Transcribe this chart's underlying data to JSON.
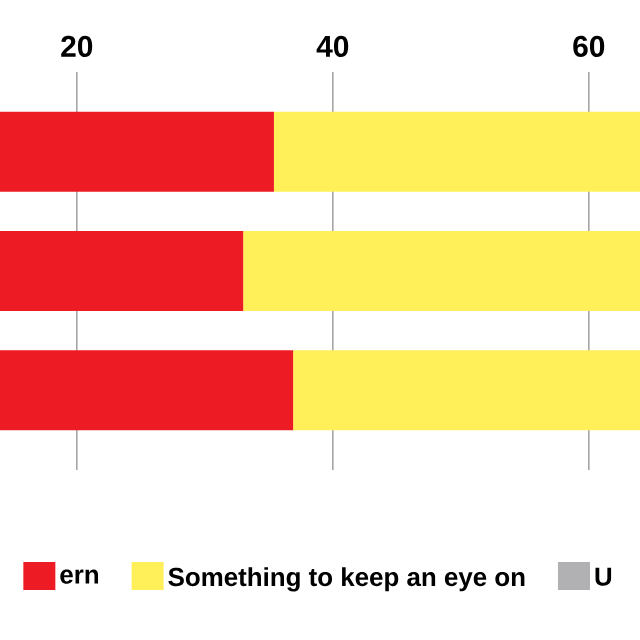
{
  "chart_data": {
    "type": "bar",
    "orientation": "horizontal",
    "stacked": true,
    "categories": [
      null,
      null,
      null
    ],
    "series": [
      {
        "name": "ern",
        "color": "#ed1c24",
        "values": [
          35.4,
          33.0,
          36.9
        ]
      },
      {
        "name": "Something to keep an eye on",
        "color": "#fff05a",
        "values": [
          28.6,
          31.0,
          27.1
        ]
      },
      {
        "name": "U",
        "color": "#b1b1b3",
        "values": [
          null,
          null,
          null
        ]
      }
    ],
    "xlim": [
      14,
      64
    ],
    "xticks": [
      20,
      40,
      60
    ],
    "grid": "x",
    "legend": "bottom"
  }
}
